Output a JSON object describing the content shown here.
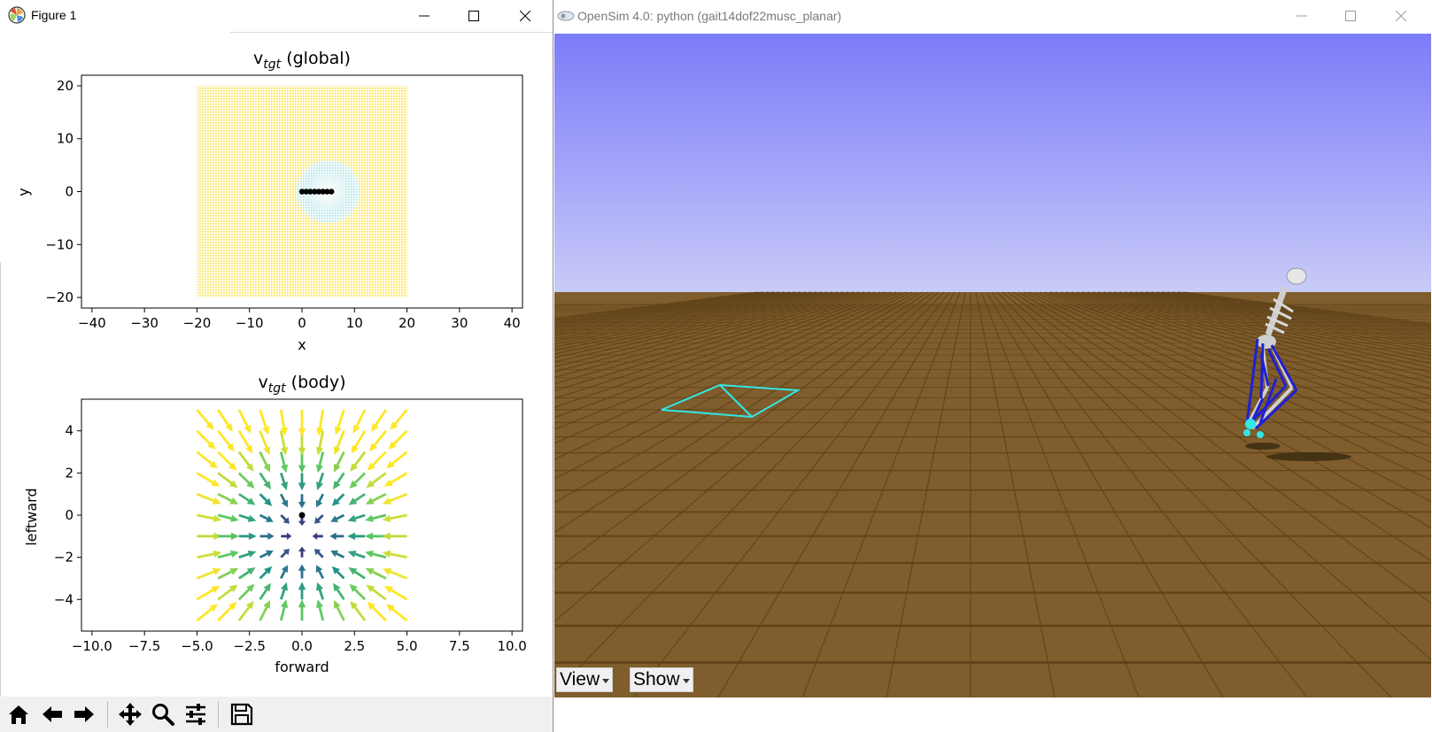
{
  "left_window": {
    "title": "Figure 1"
  },
  "right_window": {
    "title": "OpenSim 4.0: python (gait14dof22musc_planar)",
    "view_button": "View",
    "show_button": "Show"
  },
  "toolbar": {
    "tools": [
      "home-icon",
      "back-arrow-icon",
      "forward-arrow-icon",
      "pan-icon",
      "zoom-icon",
      "configure-subplots-icon",
      "save-icon"
    ]
  },
  "colors": {
    "sky_top": "#7c7cf9",
    "sky_bottom": "#c9cbf7",
    "ground": "#7f5d2c",
    "target_marker": "#33e6e6",
    "muscle_blue": "#1f1fd6"
  },
  "chart_data": [
    {
      "type": "heatmap",
      "title": "v_tgt (global)",
      "title_main": "v",
      "title_sub": "tgt",
      "title_rest": " (global)",
      "xlabel": "x",
      "ylabel": "y",
      "xlim": [
        -42,
        42
      ],
      "ylim": [
        -22,
        22
      ],
      "xticks": [
        -40,
        -30,
        -20,
        -10,
        0,
        10,
        20,
        30,
        40
      ],
      "yticks": [
        -20,
        -10,
        0,
        10,
        20
      ],
      "field_extent": {
        "x": [
          -20,
          20
        ],
        "y": [
          -20,
          20
        ]
      },
      "target_center": [
        5,
        0
      ],
      "target_radius": 6,
      "path_points": [
        [
          0,
          0
        ],
        [
          0.8,
          0
        ],
        [
          1.6,
          0
        ],
        [
          2.4,
          0
        ],
        [
          3.2,
          0
        ],
        [
          4,
          0
        ],
        [
          4.8,
          0
        ],
        [
          5.6,
          0
        ]
      ]
    },
    {
      "type": "quiver",
      "title": "v_tgt (body)",
      "title_main": "v",
      "title_sub": "tgt",
      "title_rest": " (body)",
      "xlabel": "forward",
      "ylabel": "leftward",
      "xlim": [
        -10.5,
        10.5
      ],
      "ylim": [
        -5.5,
        5.5
      ],
      "xticks": [
        -10.0,
        -7.5,
        -5.0,
        -2.5,
        0.0,
        2.5,
        5.0,
        7.5,
        10.0
      ],
      "xtick_labels": [
        "−10.0",
        "−7.5",
        "−5.0",
        "−2.5",
        "0.0",
        "2.5",
        "5.0",
        "7.5",
        "10.0"
      ],
      "yticks": [
        -4,
        -2,
        0,
        2,
        4
      ],
      "grid_x": [
        -5,
        -4,
        -3,
        -2,
        -1,
        0,
        1,
        2,
        3,
        4,
        5
      ],
      "grid_y": [
        -5,
        -4,
        -3,
        -2,
        -1,
        0,
        1,
        2,
        3,
        4,
        5
      ],
      "sink": [
        0,
        -1
      ],
      "agent_position": [
        0,
        0
      ]
    }
  ]
}
